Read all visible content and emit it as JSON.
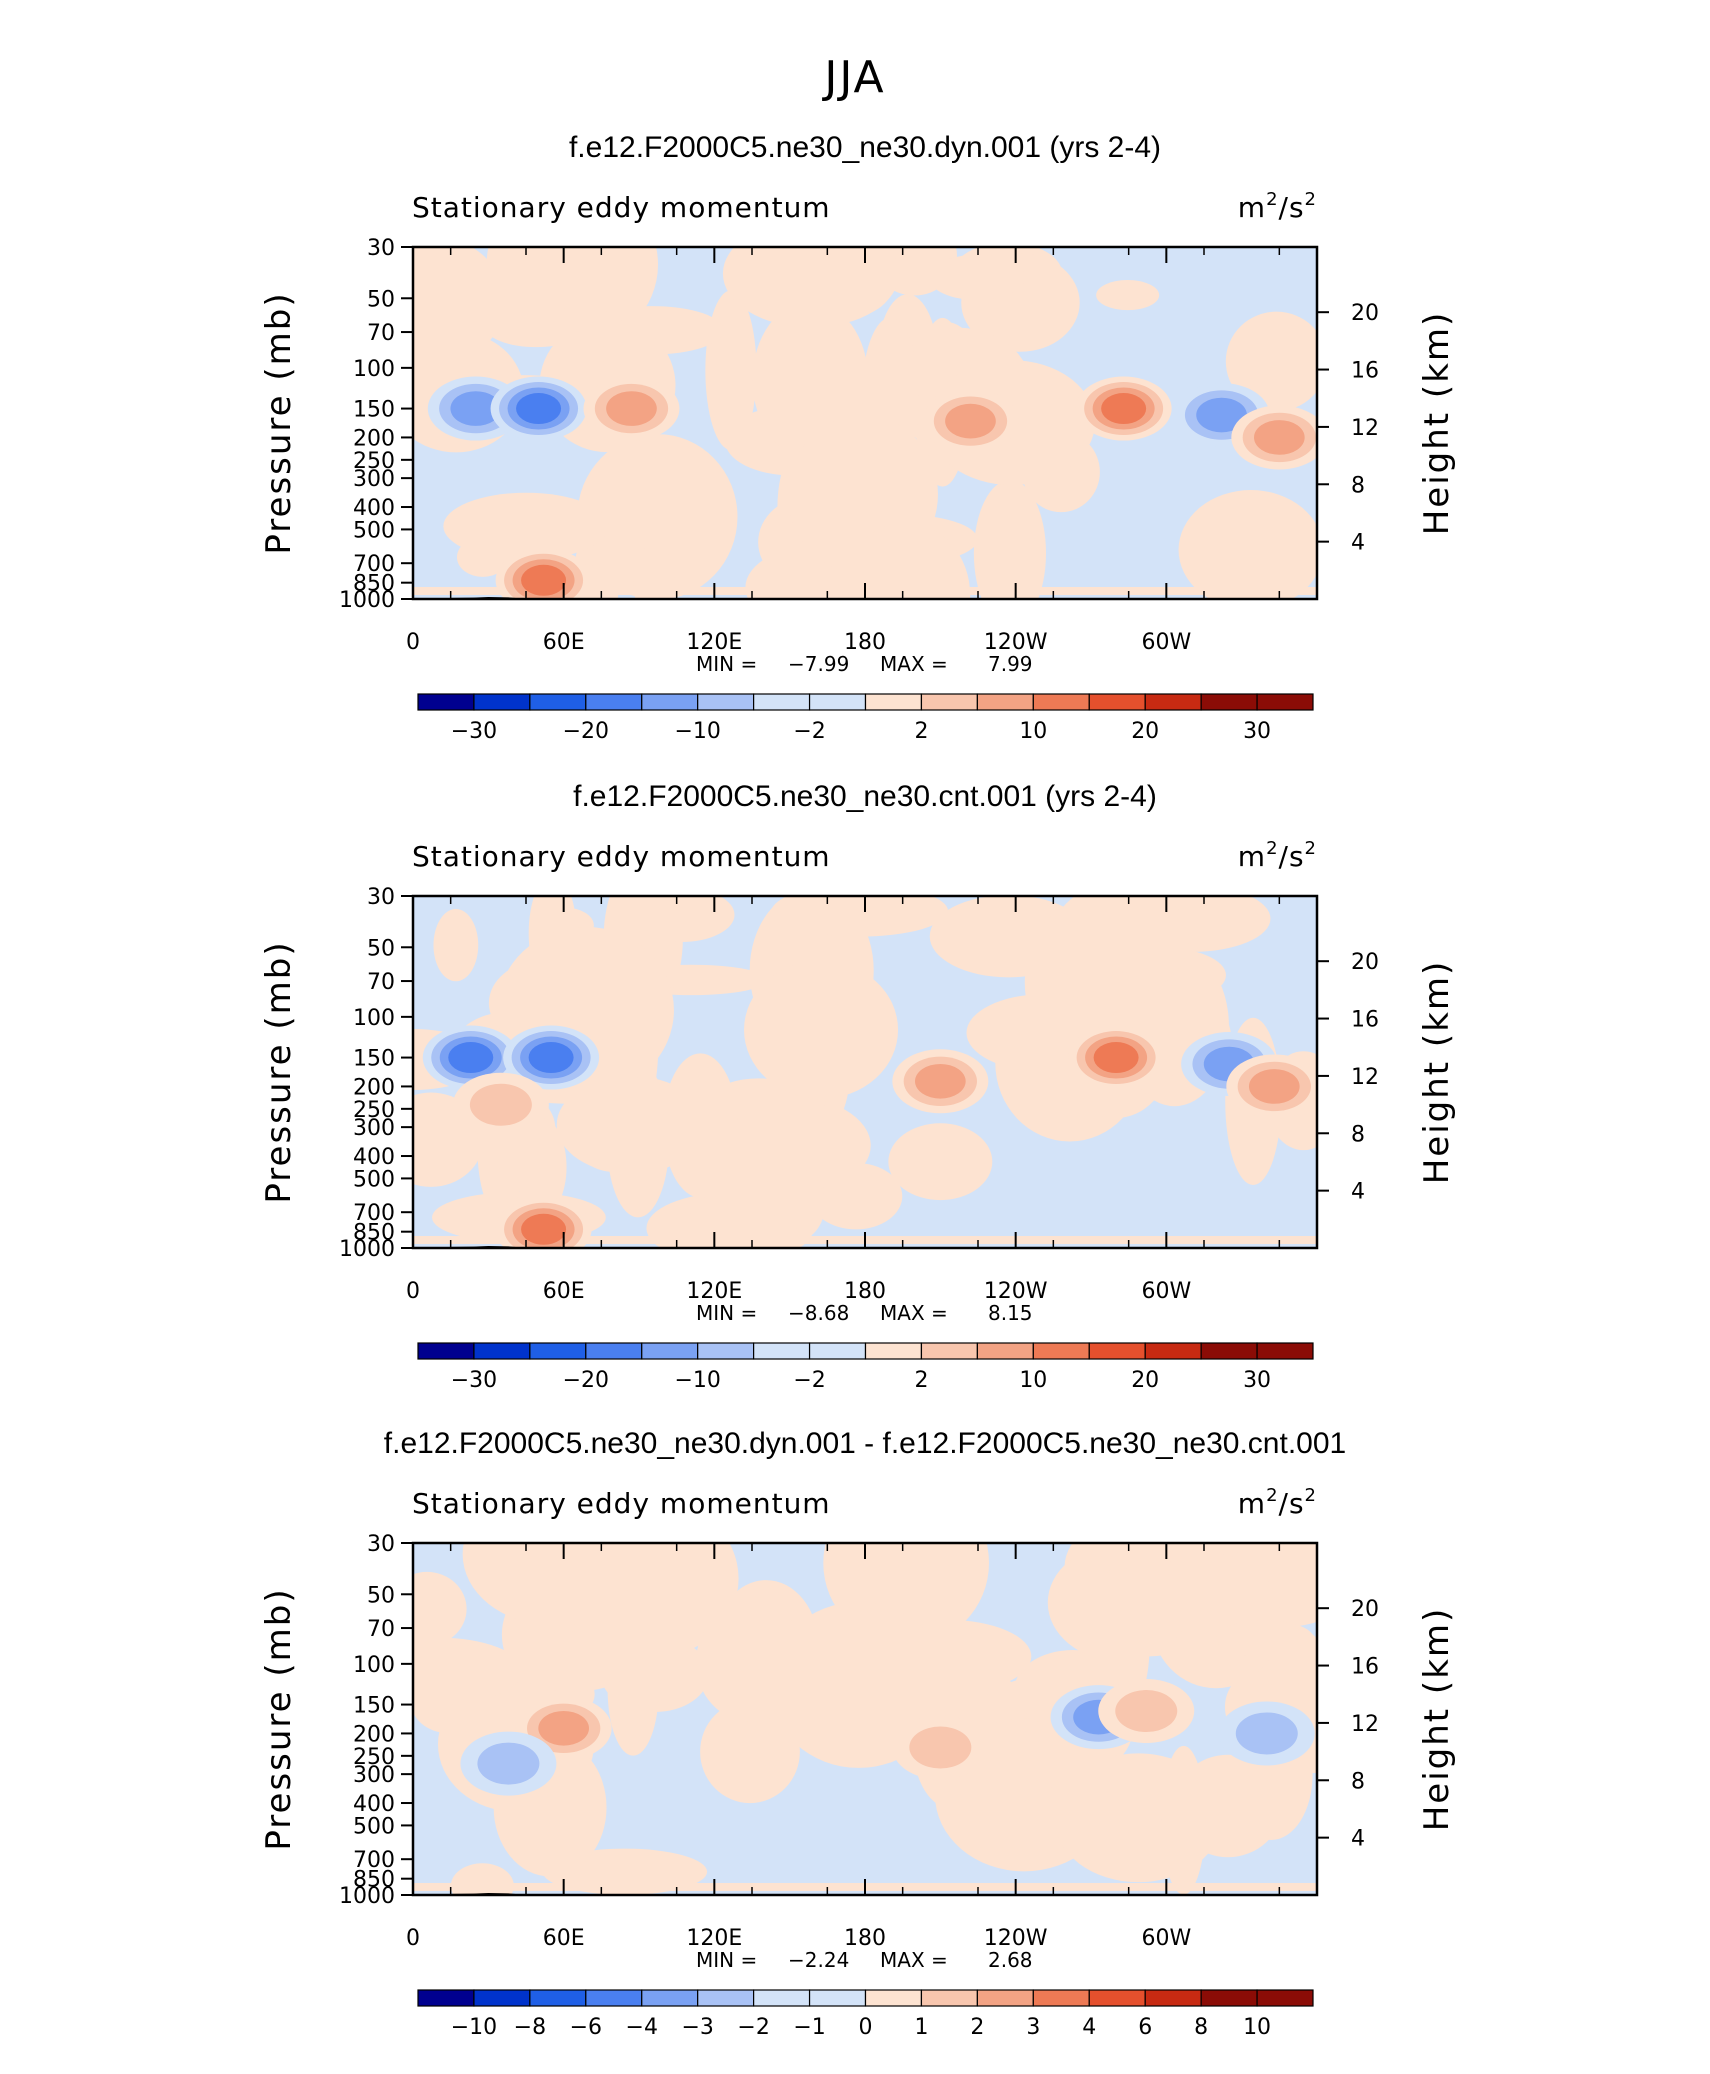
{
  "figure_title": "JJA",
  "colors": {
    "lev_neg": [
      "#00008f",
      "#0033cc",
      "#1f5fe6",
      "#4a7ff0",
      "#7aa1f3",
      "#a9c2f5",
      "#d3e3f8"
    ],
    "lev_pos": [
      "#fde3d1",
      "#f8c6ae",
      "#f3a384",
      "#ee7a55",
      "#e5502d",
      "#c72a12",
      "#8b0c06"
    ],
    "topography": "#000000"
  },
  "chart_data": [
    {
      "type": "heatmap",
      "title": "f.e12.F2000C5.ne30_ne30.dyn.001 (yrs 2-4)",
      "subtitle_left": "Stationary eddy momentum",
      "units_base": "m",
      "units_sup1": "2",
      "units_sep": "/s",
      "units_sup2": "2",
      "ylabel": "Pressure (mb)",
      "ylabel_right": "Height (km)",
      "x_ticklabels": [
        "0",
        "60E",
        "120E",
        "180",
        "120W",
        "60W"
      ],
      "y_ticklabels": [
        "30",
        "50",
        "70",
        "100",
        "150",
        "200",
        "250",
        "300",
        "400",
        "500",
        "700",
        "850",
        "1000"
      ],
      "y_right_ticklabels": [
        "20",
        "16",
        "12",
        "8",
        "4"
      ],
      "min_label": "MIN =",
      "min_value": "−7.99",
      "max_label": "MAX =",
      "max_value": "7.99",
      "colorbar_labels": [
        "−30",
        "−20",
        "−10",
        "−2",
        "2",
        "10",
        "20",
        "30"
      ],
      "features": [
        {
          "lon": 25,
          "p": 150,
          "v": -5.5,
          "name": "neg-150-25E"
        },
        {
          "lon": 50,
          "p": 150,
          "v": -6.8,
          "name": "neg-150-50E"
        },
        {
          "lon": 87,
          "p": 150,
          "v": 4.2,
          "name": "pos-150-87E"
        },
        {
          "lon": 222,
          "p": 170,
          "v": 4.5,
          "name": "pos-170-138W"
        },
        {
          "lon": 283,
          "p": 150,
          "v": 7.9,
          "name": "pos-150-77W"
        },
        {
          "lon": 322,
          "p": 160,
          "v": -5.5,
          "name": "neg-160-38W"
        },
        {
          "lon": 345,
          "p": 200,
          "v": 4.5,
          "name": "pos-200-15W"
        },
        {
          "lon": 52,
          "p": 830,
          "v": 6.0,
          "name": "pos-830-52E"
        }
      ]
    },
    {
      "type": "heatmap",
      "title": "f.e12.F2000C5.ne30_ne30.cnt.001 (yrs 2-4)",
      "subtitle_left": "Stationary eddy momentum",
      "units_base": "m",
      "units_sup1": "2",
      "units_sep": "/s",
      "units_sup2": "2",
      "ylabel": "Pressure (mb)",
      "ylabel_right": "Height (km)",
      "x_ticklabels": [
        "0",
        "60E",
        "120E",
        "180",
        "120W",
        "60W"
      ],
      "y_ticklabels": [
        "30",
        "50",
        "70",
        "100",
        "150",
        "200",
        "250",
        "300",
        "400",
        "500",
        "700",
        "850",
        "1000"
      ],
      "y_right_ticklabels": [
        "20",
        "16",
        "12",
        "8",
        "4"
      ],
      "min_label": "MIN =",
      "min_value": "−8.68",
      "max_label": "MAX =",
      "max_value": "8.15",
      "colorbar_labels": [
        "−30",
        "−20",
        "−10",
        "−2",
        "2",
        "10",
        "20",
        "30"
      ],
      "features": [
        {
          "lon": 23,
          "p": 150,
          "v": -6.0,
          "name": "neg-150-23E"
        },
        {
          "lon": 55,
          "p": 150,
          "v": -8.6,
          "name": "neg-150-55E"
        },
        {
          "lon": 35,
          "p": 240,
          "v": 3.0,
          "name": "pos-240-35E"
        },
        {
          "lon": 210,
          "p": 190,
          "v": 4.5,
          "name": "pos-190-150W"
        },
        {
          "lon": 280,
          "p": 150,
          "v": 8.1,
          "name": "pos-150-80W"
        },
        {
          "lon": 325,
          "p": 160,
          "v": -5.5,
          "name": "neg-160-35W"
        },
        {
          "lon": 343,
          "p": 200,
          "v": 4.5,
          "name": "pos-200-17W"
        },
        {
          "lon": 52,
          "p": 830,
          "v": 6.0,
          "name": "pos-830-52E"
        }
      ]
    },
    {
      "type": "heatmap",
      "title": "f.e12.F2000C5.ne30_ne30.dyn.001 - f.e12.F2000C5.ne30_ne30.cnt.001",
      "subtitle_left": "Stationary eddy momentum",
      "units_base": "m",
      "units_sup1": "2",
      "units_sep": "/s",
      "units_sup2": "2",
      "ylabel": "Pressure (mb)",
      "ylabel_right": "Height (km)",
      "x_ticklabels": [
        "0",
        "60E",
        "120E",
        "180",
        "120W",
        "60W"
      ],
      "y_ticklabels": [
        "30",
        "50",
        "70",
        "100",
        "150",
        "200",
        "250",
        "300",
        "400",
        "500",
        "700",
        "850",
        "1000"
      ],
      "y_right_ticklabels": [
        "20",
        "16",
        "12",
        "8",
        "4"
      ],
      "min_label": "MIN =",
      "min_value": "−2.24",
      "max_label": "MAX =",
      "max_value": "2.68",
      "colorbar_labels": [
        "−10",
        "−8",
        "−6",
        "−4",
        "−3",
        "−2",
        "−1",
        "0",
        "1",
        "2",
        "3",
        "4",
        "6",
        "8",
        "10"
      ],
      "features": [
        {
          "lon": 60,
          "p": 190,
          "v": 2.6,
          "name": "pos-190-60E"
        },
        {
          "lon": 38,
          "p": 270,
          "v": -1.6,
          "name": "neg-270-38E"
        },
        {
          "lon": 273,
          "p": 170,
          "v": -2.2,
          "name": "neg-170-87W"
        },
        {
          "lon": 292,
          "p": 160,
          "v": 1.8,
          "name": "pos-160-68W"
        },
        {
          "lon": 340,
          "p": 200,
          "v": -1.4,
          "name": "neg-200-20W"
        },
        {
          "lon": 210,
          "p": 230,
          "v": 1.1,
          "name": "pos-230-150W"
        }
      ]
    }
  ],
  "axis_value_ranges": {
    "lon": [
      0,
      360
    ],
    "p": [
      30,
      1000
    ],
    "height_km": [
      0,
      24
    ]
  }
}
